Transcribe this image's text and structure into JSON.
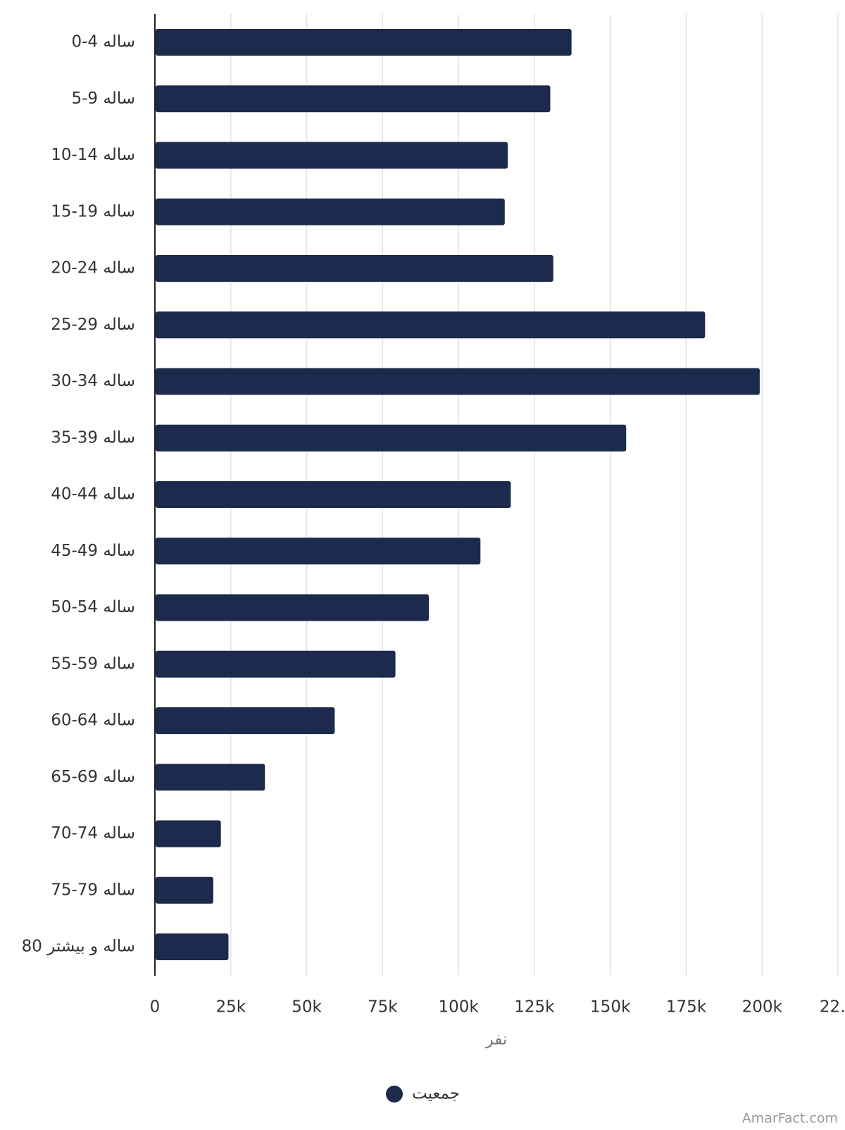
{
  "chart_data": {
    "type": "bar",
    "orientation": "horizontal",
    "categories": [
      "0-4 ساله",
      "5-9 ساله",
      "10-14 ساله",
      "15-19 ساله",
      "20-24 ساله",
      "25-29 ساله",
      "30-34 ساله",
      "35-39 ساله",
      "40-44 ساله",
      "45-49 ساله",
      "50-54 ساله",
      "55-59 ساله",
      "60-64 ساله",
      "65-69 ساله",
      "70-74 ساله",
      "75-79 ساله",
      "80 ساله و بیشتر"
    ],
    "series": [
      {
        "name": "جمعیت",
        "color": "#1c2a4d",
        "values": [
          137000,
          130000,
          116000,
          115000,
          131000,
          181000,
          199000,
          155000,
          117000,
          107000,
          90000,
          79000,
          59000,
          36000,
          21500,
          19000,
          24000
        ]
      }
    ],
    "xlim": [
      0,
      225000
    ],
    "xticks": [
      0,
      {
        "value": 25000,
        "label": "25k"
      },
      {
        "value": 50000,
        "label": "50k"
      },
      {
        "value": 75000,
        "label": "75k"
      },
      {
        "value": 100000,
        "label": "100k"
      },
      {
        "value": 125000,
        "label": "125k"
      },
      {
        "value": 150000,
        "label": "150k"
      },
      {
        "value": 175000,
        "label": "175k"
      },
      {
        "value": 200000,
        "label": "200k"
      },
      {
        "value": 225000,
        "label": "22…"
      }
    ],
    "xlabel": "نفر",
    "grid": true,
    "legend": "bottom",
    "watermark": "AmarFact.com"
  }
}
